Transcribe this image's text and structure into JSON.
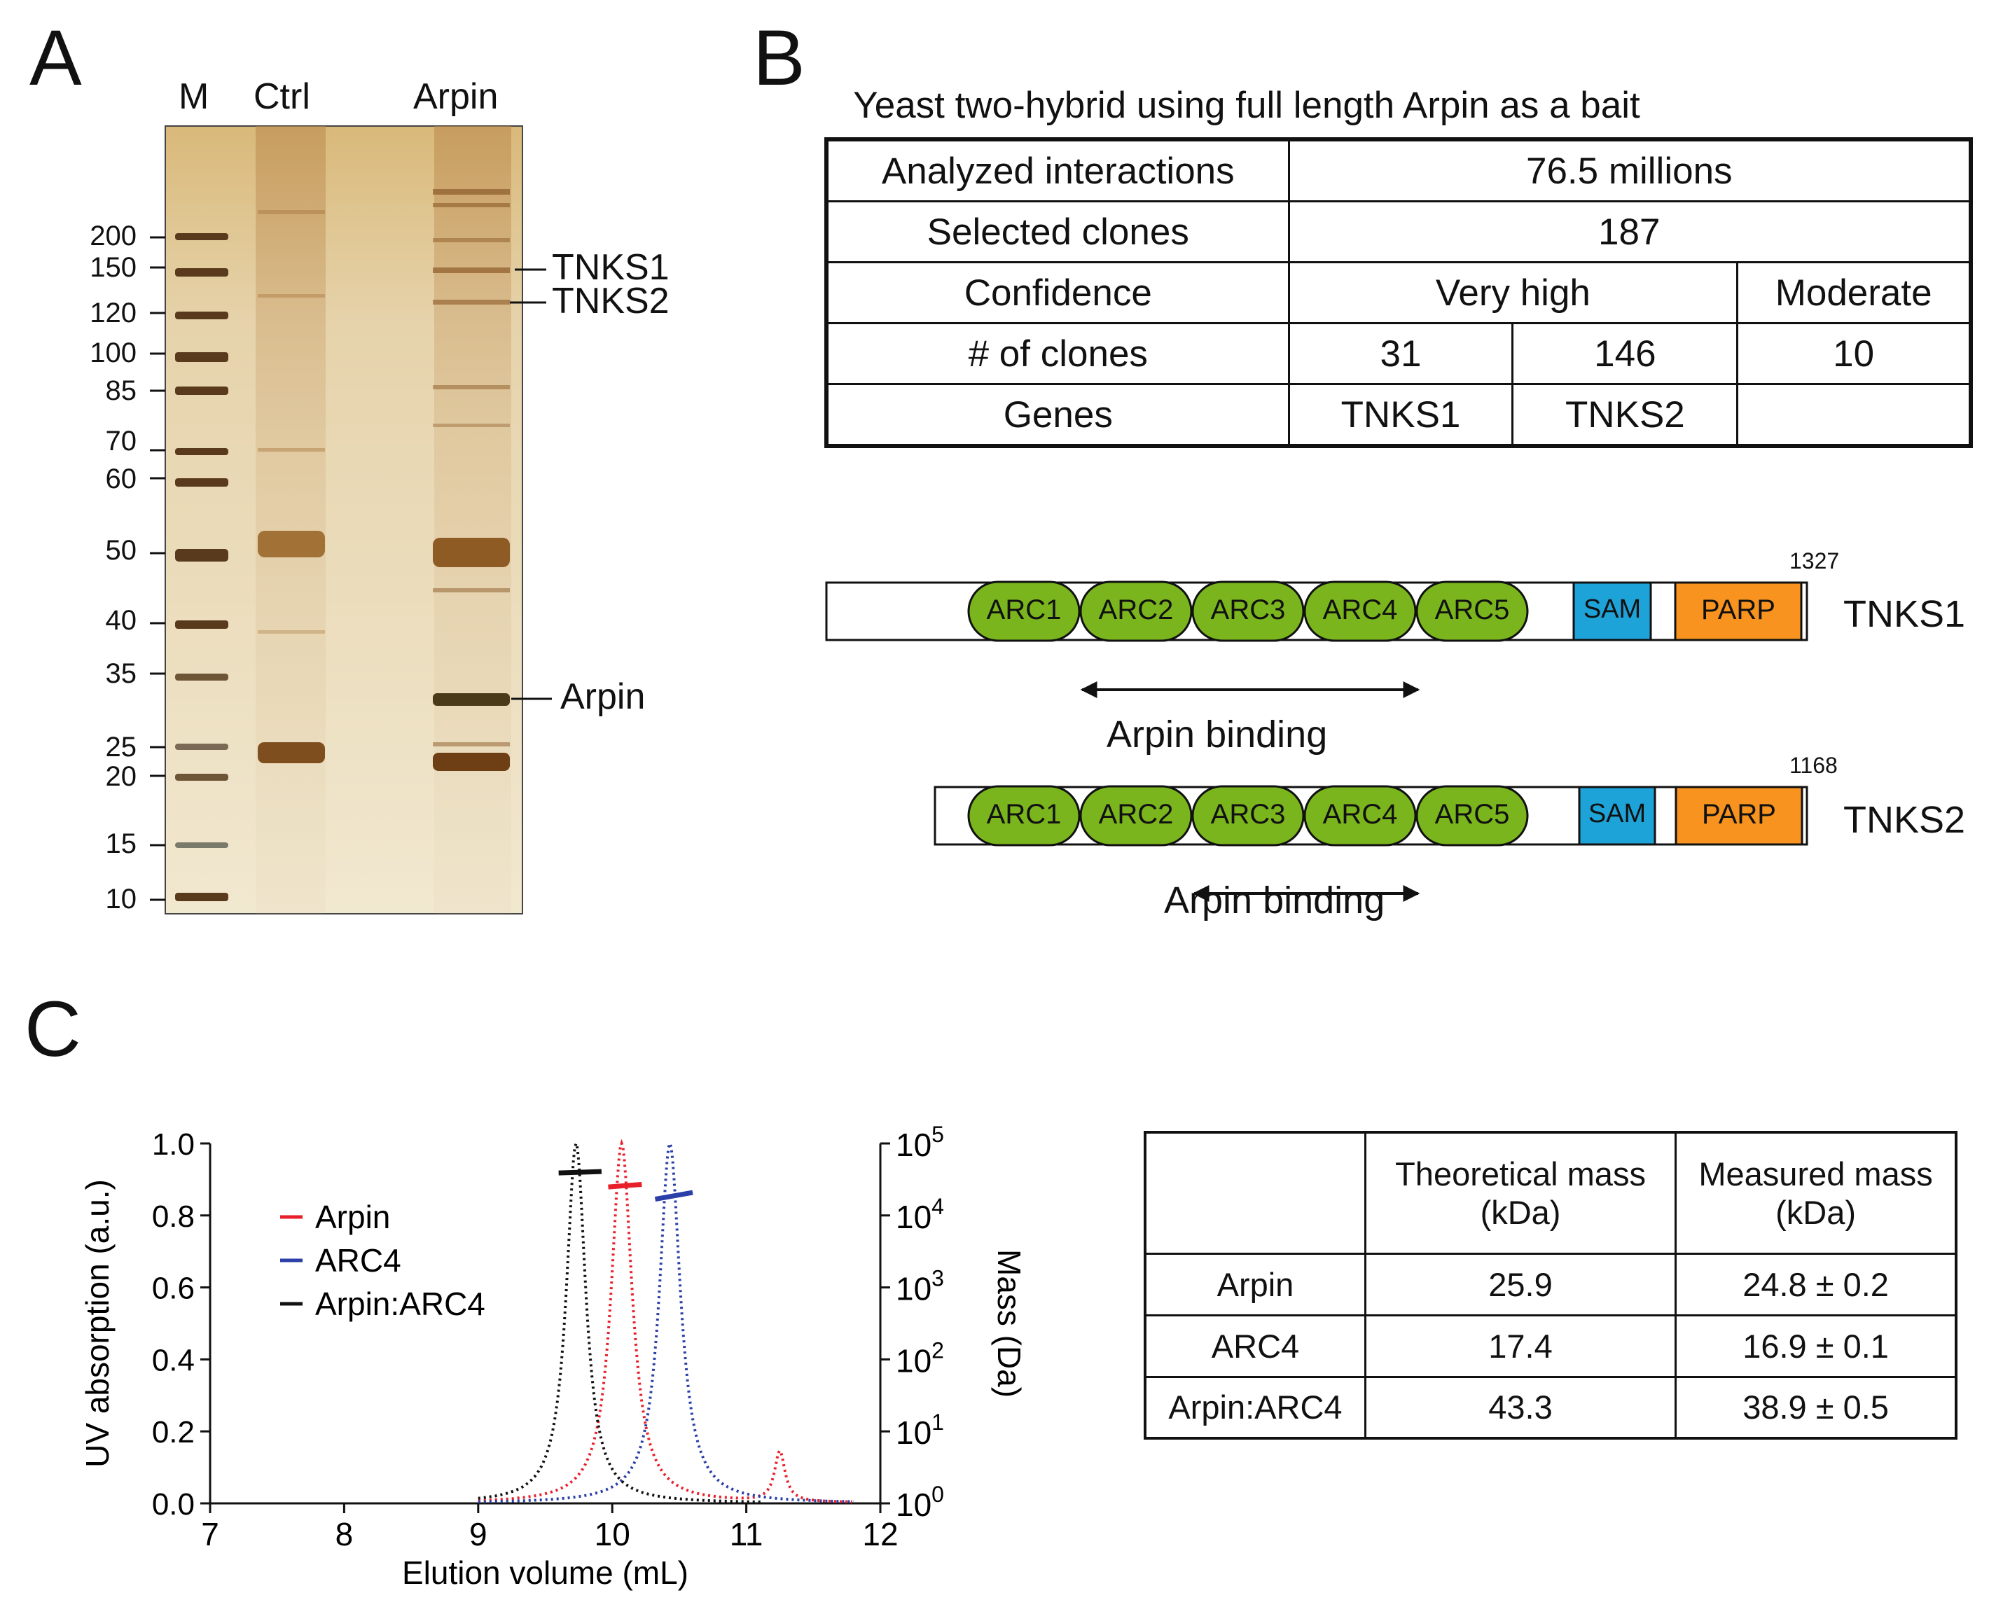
{
  "panel_a": {
    "letter": "A",
    "lanes": [
      "M",
      "Ctrl",
      "Arpin"
    ],
    "mw_markers": [
      "200",
      "150",
      "120",
      "100",
      "85",
      "70",
      "60",
      "50",
      "40",
      "35",
      "25",
      "20",
      "15",
      "10"
    ],
    "band_labels": [
      "TNKS1",
      "TNKS2",
      "Arpin"
    ]
  },
  "panel_b": {
    "letter": "B",
    "table_title": "Yeast two-hybrid using full length Arpin as a bait",
    "rows": {
      "analyzed": {
        "label": "Analyzed interactions",
        "value": "76.5 millions"
      },
      "selected": {
        "label": "Selected clones",
        "value": "187"
      },
      "confidence": {
        "label": "Confidence",
        "very_high": "Very high",
        "moderate": "Moderate"
      },
      "clones": {
        "label": "# of clones",
        "a": "31",
        "b": "146",
        "c": "10"
      },
      "genes": {
        "label": "Genes",
        "a": "TNKS1",
        "b": "TNKS2",
        "c": ""
      }
    },
    "domains": {
      "tnks1": {
        "name": "TNKS1",
        "length": "1327",
        "binding": "Arpin binding"
      },
      "tnks2": {
        "name": "TNKS2",
        "length": "1168",
        "binding": "Arpin binding"
      },
      "arc_labels": [
        "ARC1",
        "ARC2",
        "ARC3",
        "ARC4",
        "ARC5"
      ],
      "sam": "SAM",
      "parp": "PARP",
      "colors": {
        "arc": "#7ab51d",
        "sam": "#1ea3d8",
        "parp": "#f7931e"
      }
    }
  },
  "panel_c": {
    "letter": "C",
    "chart_data": {
      "type": "line",
      "xlabel": "Elution volume (mL)",
      "ylabel": "UV absorption (a.u.)",
      "y2label": "Mass (Da)",
      "xlim": [
        7,
        12
      ],
      "ylim": [
        0,
        1
      ],
      "x_ticks": [
        "7",
        "8",
        "9",
        "10",
        "11",
        "12"
      ],
      "y_ticks": [
        "0.0",
        "0.2",
        "0.4",
        "0.6",
        "0.8",
        "1.0"
      ],
      "y2_ticks": [
        {
          "base": "10",
          "exp": "0"
        },
        {
          "base": "10",
          "exp": "1"
        },
        {
          "base": "10",
          "exp": "2"
        },
        {
          "base": "10",
          "exp": "3"
        },
        {
          "base": "10",
          "exp": "4"
        },
        {
          "base": "10",
          "exp": "5"
        }
      ],
      "legend_position": "top-left",
      "series": [
        {
          "name": "Arpin",
          "color": "#e8202a",
          "peaks": [
            {
              "center": 10.07,
              "height": 1.0,
              "width": 0.14
            },
            {
              "center": 11.25,
              "height": 0.14,
              "width": 0.07
            }
          ],
          "mass_segment": {
            "x": [
              9.97,
              10.22
            ],
            "log_mass": [
              4.396,
              4.431
            ]
          }
        },
        {
          "name": "ARC4",
          "color": "#2a3fa8",
          "peaks": [
            {
              "center": 10.43,
              "height": 1.0,
              "width": 0.14
            }
          ],
          "mass_segment": {
            "x": [
              10.32,
              10.6
            ],
            "log_mass": [
              4.226,
              4.318
            ]
          }
        },
        {
          "name": "Arpin:ARC4",
          "color": "#111111",
          "peaks": [
            {
              "center": 9.73,
              "height": 1.0,
              "width": 0.13
            }
          ],
          "mass_segment": {
            "x": [
              9.6,
              9.92
            ],
            "log_mass": [
              4.59,
              4.61
            ]
          }
        }
      ]
    },
    "mass_table": {
      "headers": [
        "",
        "Theoretical mass (kDa)",
        "Measured mass (kDa)"
      ],
      "rows": [
        {
          "name": "Arpin",
          "theoretical": "25.9",
          "measured": "24.8 ± 0.2"
        },
        {
          "name": "ARC4",
          "theoretical": "17.4",
          "measured": "16.9 ± 0.1"
        },
        {
          "name": "Arpin:ARC4",
          "theoretical": "43.3",
          "measured": "38.9 ± 0.5"
        }
      ]
    }
  }
}
